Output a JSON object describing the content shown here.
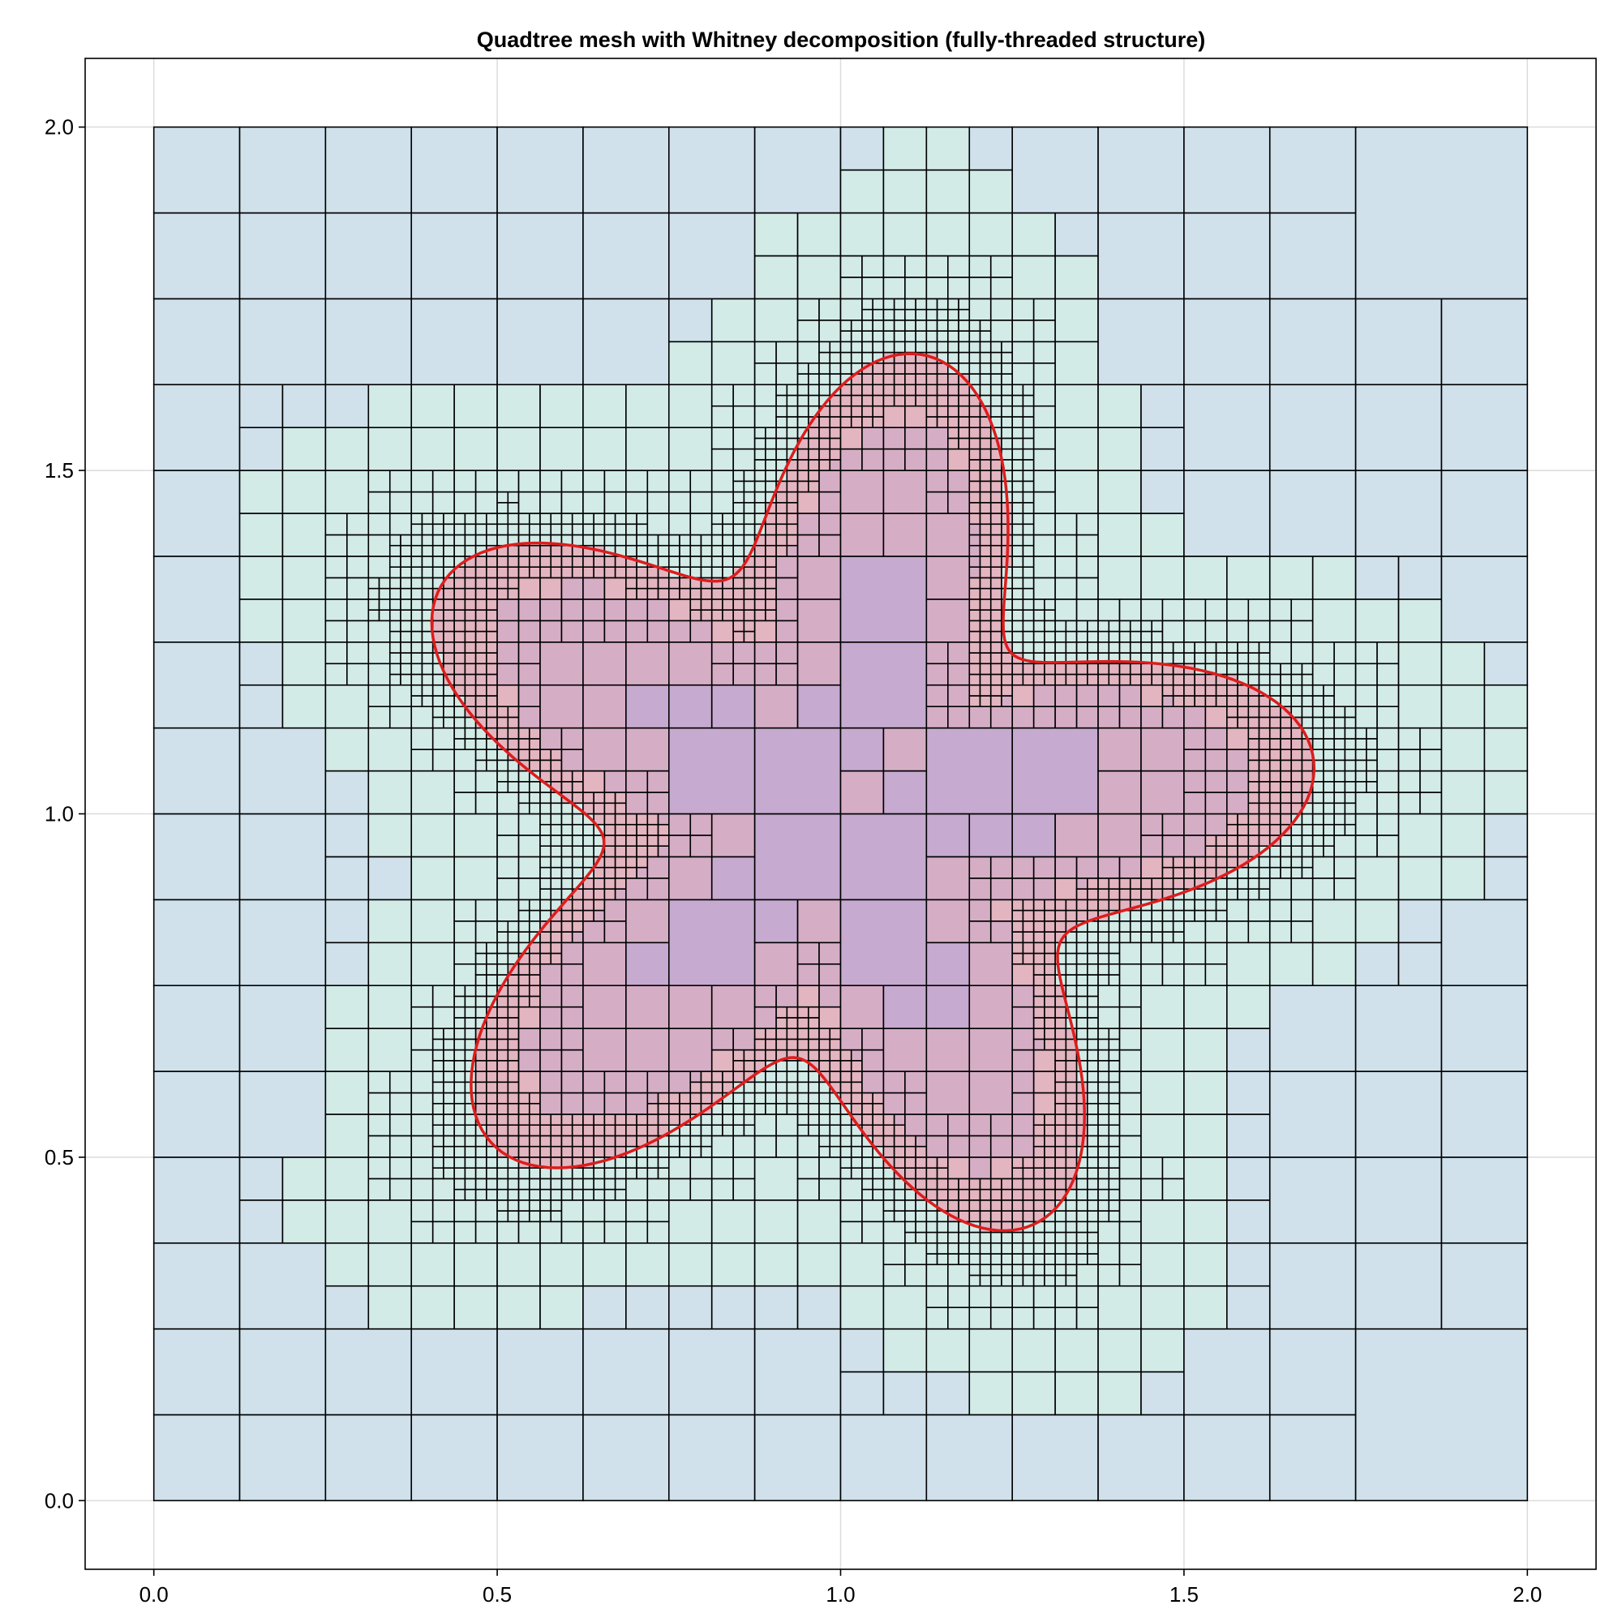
{
  "title": "Quadtree mesh with Whitney decomposition (fully-threaded structure)",
  "chart_data": {
    "type": "quadtree-mesh",
    "title": "Quadtree mesh with Whitney decomposition (fully-threaded structure)",
    "xlabel": "",
    "ylabel": "",
    "xlim": [
      -0.1,
      2.1
    ],
    "ylim": [
      -0.1,
      2.1
    ],
    "xticks": [
      "0.0",
      "0.5",
      "1.0",
      "1.5",
      "2.0"
    ],
    "yticks": [
      "0.0",
      "0.5",
      "1.0",
      "1.5",
      "2.0"
    ],
    "xtick_values": [
      0,
      0.5,
      1.0,
      1.5,
      2.0
    ],
    "ytick_values": [
      0,
      0.5,
      1.0,
      1.5,
      2.0
    ],
    "grid": true,
    "domain": [
      [
        0,
        0
      ],
      [
        2,
        2
      ]
    ],
    "boundary_curve": {
      "color": "#dd1c1c",
      "center": [
        1.0,
        1.0
      ],
      "shape": "5-lobed star",
      "r_min": 0.36,
      "r_max": 0.68
    },
    "cell_colors": {
      "far_exterior": "#d0e1ec",
      "near_exterior": "#d3ebe7",
      "boundary_band": "#e3b5c0",
      "interior": "#d5aec6",
      "deep_interior": "#c6aad0"
    },
    "max_depth": 7
  }
}
